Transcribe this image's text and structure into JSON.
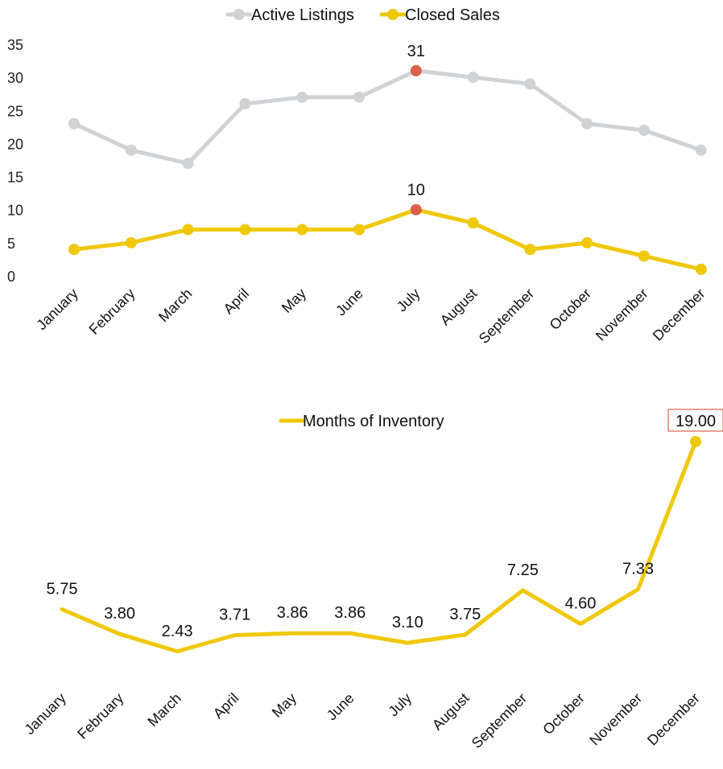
{
  "colors": {
    "active": "#d0d3d6",
    "closed": "#f0c80a",
    "highlight": "#d9604a",
    "mi": "#f0c80a",
    "droplineTop": "#e6f4f7",
    "droplineBottom": "#1f7fae",
    "highlightBox": "#d9604a"
  },
  "chart_data": [
    {
      "type": "line",
      "categories": [
        "January",
        "February",
        "March",
        "April",
        "May",
        "June",
        "July",
        "August",
        "September",
        "October",
        "November",
        "December"
      ],
      "series": [
        {
          "name": "Active Listings",
          "values": [
            23,
            19,
            17,
            26,
            27,
            27,
            31,
            30,
            29,
            23,
            22,
            19
          ]
        },
        {
          "name": "Closed Sales",
          "values": [
            4,
            5,
            7,
            7,
            7,
            7,
            10,
            8,
            4,
            5,
            3,
            1
          ]
        }
      ],
      "ylim": [
        0,
        35
      ],
      "yticks": [
        "0",
        "5",
        "10",
        "15",
        "20",
        "25",
        "30",
        "35"
      ],
      "legend": "top-center",
      "highlight_index": 6,
      "highlight_labels": [
        "31",
        "10"
      ]
    },
    {
      "type": "line",
      "categories": [
        "January",
        "February",
        "March",
        "April",
        "May",
        "June",
        "July",
        "August",
        "September",
        "October",
        "November",
        "December"
      ],
      "series": [
        {
          "name": "Months of Inventory",
          "values": [
            5.75,
            3.8,
            2.43,
            3.71,
            3.86,
            3.86,
            3.1,
            3.75,
            7.25,
            4.6,
            7.33,
            19.0
          ]
        }
      ],
      "data_labels": [
        "5.75",
        "3.80",
        "2.43",
        "3.71",
        "3.86",
        "3.86",
        "3.10",
        "3.75",
        "7.25",
        "4.60",
        "7.33",
        "19.00"
      ],
      "legend": "top-center",
      "highlight_index": 11
    }
  ]
}
